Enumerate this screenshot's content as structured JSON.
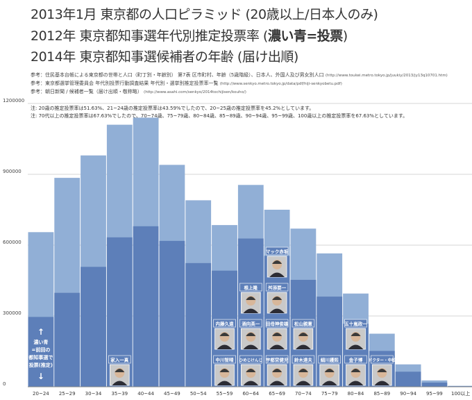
{
  "titles": {
    "line1": "2013年1月 東京都の人口ピラミッド (20歳以上/日本人のみ)",
    "line2_a": "2012年 東京都知事選年代別推定投票率 (",
    "line2_b": "濃い青=投票",
    "line2_c": ")",
    "line3": "2014年 東京都知事選候補者の年齢 (届け出順)"
  },
  "references": [
    {
      "text": "参考：住民基本台帳による東京都の世帯と人口（町丁別・年齢別） 第7表 区市町村、年齢（5歳階級）、日本人、外国人及び男女別人口",
      "url": "(http://www.toukei.metro.tokyo.jp/juukiy/2013/jy13q10701.htm)"
    },
    {
      "text": "参考：東京都選挙管理委員会 年代別投票行動調査結果 年代別・選挙別推定投票率一覧",
      "url": "(http://www.senkyo.metro.tokyo.jp/data/pdf/hiji-senkyobetu.pdf)"
    },
    {
      "text": "参考：朝日新聞 / 候補者一覧（届け出順・敬称略）",
      "url": "(http://www.asahi.com/senkyo/2014tochijisen/kouho/)"
    }
  ],
  "notes": [
    "注: 20歳の推定投票率は51.63%、21~24歳の推定投票率は43.59%でしたので、20~25歳の推定投票率を45.2%としています。",
    "注: 70代以上の推定投票率は67.63%でしたので、70~74歳、75~79歳、80~84歳、85~89歳、90~94歳、95~99歳、100歳以上の推定投票率を67.63%としています。"
  ],
  "side_label": {
    "arrow_up": "↑",
    "lines": [
      "濃い青",
      "=前回の",
      "都知事選で",
      "投票(推定)"
    ],
    "arrow_down": "↓"
  },
  "candidates": [
    {
      "name": "マック赤坂",
      "age_group": "65~69"
    },
    {
      "name": "根上隆",
      "age_group": "60~64"
    },
    {
      "name": "舛添要一",
      "age_group": "65~69"
    },
    {
      "name": "内藤久遠",
      "age_group": "55~59"
    },
    {
      "name": "酒向英一",
      "age_group": "60~64"
    },
    {
      "name": "田母神俊雄",
      "age_group": "65~69"
    },
    {
      "name": "松山親憲",
      "age_group": "70~74"
    },
    {
      "name": "五十嵐政一",
      "age_group": "80~84"
    },
    {
      "name": "家入一真",
      "age_group": "35~39"
    },
    {
      "name": "中川智晴",
      "age_group": "55~59"
    },
    {
      "name": "ひめじけんじ",
      "age_group": "60~64"
    },
    {
      "name": "宇都宮健児",
      "age_group": "65~69"
    },
    {
      "name": "鈴木達夫",
      "age_group": "70~74"
    },
    {
      "name": "細川護熙",
      "age_group": "75~79"
    },
    {
      "name": "金子博",
      "age_group": "80~84"
    },
    {
      "name": "ドクター・中松",
      "age_group": "85~89"
    }
  ],
  "colors": {
    "population": "#91afd6",
    "voted": "#5d7fb9",
    "gridline": "#d5d5d5",
    "label_box": "#5d7fb9",
    "label_text": "#ffffff"
  },
  "chart_data": {
    "type": "bar",
    "categories": [
      "20~24",
      "25~29",
      "30~34",
      "35~39",
      "40~44",
      "45~49",
      "50~54",
      "55~59",
      "60~64",
      "65~69",
      "70~74",
      "75~79",
      "80~84",
      "85~89",
      "90~94",
      "95~99",
      "100以上"
    ],
    "series": [
      {
        "name": "人口",
        "values": [
          655000,
          885000,
          980000,
          1110000,
          1140000,
          940000,
          790000,
          685000,
          855000,
          750000,
          670000,
          565000,
          395000,
          225000,
          95000,
          27000,
          4000
        ]
      },
      {
        "name": "投票(推定)",
        "values": [
          296000,
          398000,
          508000,
          633000,
          680000,
          618000,
          524000,
          492000,
          628000,
          555000,
          453000,
          382000,
          267000,
          152000,
          64000,
          18000,
          3000
        ]
      }
    ],
    "ylim": [
      0,
      1200000
    ],
    "yticks": [
      0,
      300000,
      600000,
      900000,
      1200000
    ],
    "grid": true
  }
}
